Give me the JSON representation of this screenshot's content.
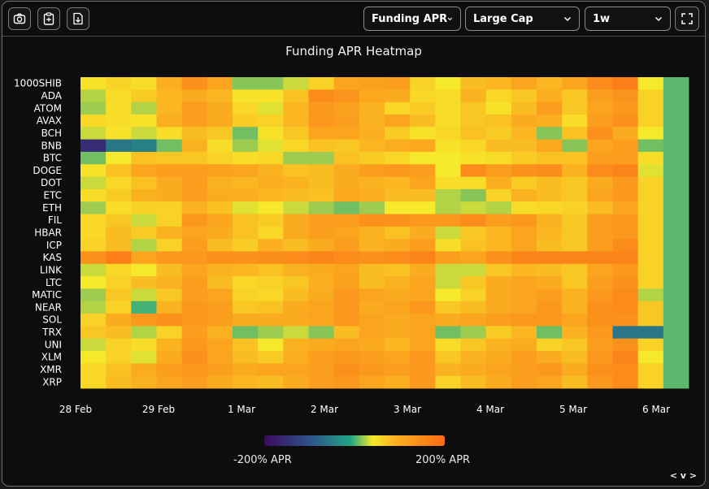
{
  "toolbar": {
    "icons": [
      "camera-icon",
      "clipboard-icon",
      "file-download-icon",
      "expand-icon"
    ],
    "metric_select": "Funding APR",
    "universe_select": "Large Cap",
    "period_select": "1w"
  },
  "chart_data": {
    "type": "heatmap",
    "title": "Funding APR Heatmap",
    "y_categories": [
      "1000SHIB",
      "ADA",
      "ATOM",
      "AVAX",
      "BCH",
      "BNB",
      "BTC",
      "DOGE",
      "DOT",
      "ETC",
      "ETH",
      "FIL",
      "HBAR",
      "ICP",
      "KAS",
      "LINK",
      "LTC",
      "MATIC",
      "NEAR",
      "SOL",
      "TRX",
      "UNI",
      "XLM",
      "XMR",
      "XRP"
    ],
    "x_tick_labels": [
      "28 Feb",
      "29 Feb",
      "1 Mar",
      "2 Mar",
      "3 Mar",
      "4 Mar",
      "5 Mar",
      "6 Mar"
    ],
    "value_range": [
      -200,
      200
    ],
    "colorscale": [
      "#3d0a5c",
      "#2f4e8a",
      "#21a585",
      "#f6e82a",
      "#fbb321",
      "#fb6a15"
    ],
    "values": [
      [
        45,
        58,
        50,
        95,
        140,
        110,
        15,
        15,
        30,
        60,
        110,
        115,
        120,
        60,
        40,
        80,
        85,
        110,
        85,
        110,
        150,
        170,
        40,
        5
      ],
      [
        25,
        50,
        65,
        85,
        100,
        85,
        45,
        45,
        75,
        150,
        135,
        105,
        100,
        55,
        50,
        90,
        55,
        70,
        95,
        70,
        120,
        135,
        60,
        5
      ],
      [
        20,
        50,
        25,
        85,
        120,
        100,
        55,
        35,
        85,
        130,
        115,
        90,
        55,
        65,
        50,
        70,
        45,
        80,
        120,
        70,
        110,
        130,
        60,
        5
      ],
      [
        55,
        50,
        45,
        95,
        120,
        100,
        65,
        60,
        85,
        130,
        120,
        90,
        110,
        80,
        50,
        70,
        75,
        100,
        95,
        50,
        120,
        140,
        60,
        5
      ],
      [
        30,
        45,
        30,
        50,
        80,
        70,
        10,
        45,
        70,
        110,
        110,
        95,
        65,
        45,
        55,
        75,
        65,
        85,
        15,
        75,
        140,
        100,
        40,
        5
      ],
      [
        -150,
        -60,
        -50,
        10,
        90,
        50,
        20,
        35,
        55,
        75,
        70,
        85,
        95,
        105,
        45,
        55,
        80,
        80,
        105,
        15,
        110,
        120,
        10,
        5
      ],
      [
        10,
        40,
        75,
        70,
        70,
        60,
        50,
        55,
        20,
        20,
        75,
        65,
        55,
        40,
        40,
        45,
        50,
        65,
        75,
        75,
        120,
        120,
        50,
        5
      ],
      [
        45,
        75,
        110,
        120,
        120,
        115,
        110,
        90,
        75,
        80,
        100,
        120,
        130,
        120,
        40,
        150,
        120,
        140,
        145,
        90,
        150,
        160,
        35,
        5
      ],
      [
        30,
        55,
        75,
        100,
        120,
        90,
        85,
        95,
        90,
        80,
        100,
        90,
        85,
        110,
        50,
        50,
        95,
        65,
        80,
        70,
        100,
        130,
        60,
        5
      ],
      [
        50,
        65,
        90,
        100,
        120,
        100,
        95,
        85,
        80,
        75,
        105,
        95,
        80,
        80,
        25,
        15,
        60,
        90,
        80,
        70,
        110,
        130,
        60,
        5
      ],
      [
        20,
        50,
        60,
        60,
        90,
        75,
        35,
        40,
        30,
        20,
        10,
        20,
        40,
        40,
        25,
        30,
        25,
        50,
        55,
        60,
        80,
        110,
        60,
        5
      ],
      [
        55,
        70,
        30,
        60,
        130,
        110,
        75,
        65,
        100,
        120,
        120,
        140,
        140,
        130,
        130,
        150,
        120,
        130,
        90,
        70,
        120,
        130,
        60,
        5
      ],
      [
        55,
        80,
        65,
        90,
        110,
        100,
        75,
        55,
        100,
        120,
        110,
        90,
        75,
        100,
        30,
        70,
        85,
        110,
        85,
        70,
        120,
        130,
        60,
        5
      ],
      [
        60,
        80,
        25,
        60,
        120,
        80,
        65,
        95,
        80,
        100,
        120,
        90,
        100,
        120,
        50,
        75,
        85,
        110,
        80,
        70,
        120,
        150,
        60,
        5
      ],
      [
        140,
        170,
        110,
        130,
        130,
        140,
        140,
        145,
        150,
        160,
        150,
        140,
        150,
        160,
        120,
        110,
        140,
        160,
        160,
        160,
        160,
        160,
        60,
        5
      ],
      [
        30,
        55,
        40,
        80,
        110,
        90,
        85,
        75,
        90,
        100,
        110,
        80,
        75,
        100,
        30,
        30,
        70,
        85,
        80,
        70,
        110,
        130,
        60,
        5
      ],
      [
        40,
        60,
        80,
        90,
        120,
        80,
        55,
        60,
        70,
        95,
        115,
        80,
        90,
        110,
        30,
        70,
        100,
        110,
        100,
        70,
        120,
        140,
        60,
        5
      ],
      [
        20,
        70,
        30,
        70,
        120,
        110,
        60,
        55,
        80,
        100,
        130,
        110,
        100,
        110,
        40,
        60,
        100,
        110,
        120,
        90,
        130,
        150,
        25,
        5
      ],
      [
        25,
        60,
        0,
        90,
        130,
        120,
        70,
        75,
        100,
        110,
        130,
        100,
        110,
        130,
        70,
        80,
        100,
        110,
        130,
        90,
        140,
        150,
        70,
        5
      ],
      [
        60,
        100,
        130,
        140,
        130,
        120,
        100,
        100,
        100,
        110,
        130,
        110,
        100,
        110,
        100,
        110,
        120,
        130,
        130,
        110,
        140,
        140,
        70,
        5
      ],
      [
        70,
        80,
        25,
        60,
        120,
        90,
        10,
        20,
        30,
        15,
        80,
        110,
        100,
        110,
        10,
        20,
        65,
        85,
        10,
        90,
        130,
        -60,
        -60,
        5
      ],
      [
        30,
        60,
        50,
        90,
        130,
        110,
        75,
        40,
        90,
        100,
        110,
        100,
        85,
        110,
        50,
        70,
        90,
        100,
        60,
        70,
        120,
        140,
        60,
        5
      ],
      [
        40,
        60,
        35,
        100,
        140,
        110,
        80,
        65,
        95,
        120,
        130,
        120,
        110,
        130,
        70,
        90,
        100,
        120,
        100,
        80,
        130,
        160,
        40,
        5
      ],
      [
        55,
        75,
        100,
        120,
        130,
        120,
        100,
        110,
        110,
        120,
        140,
        130,
        120,
        130,
        90,
        100,
        110,
        120,
        130,
        100,
        140,
        150,
        60,
        5
      ],
      [
        55,
        80,
        90,
        110,
        120,
        100,
        85,
        80,
        100,
        120,
        130,
        110,
        95,
        130,
        60,
        80,
        100,
        120,
        110,
        80,
        130,
        150,
        60,
        5
      ]
    ],
    "legend": {
      "min_label": "-200% APR",
      "max_label": "200% APR"
    }
  },
  "nav": {
    "label": "< v >"
  }
}
